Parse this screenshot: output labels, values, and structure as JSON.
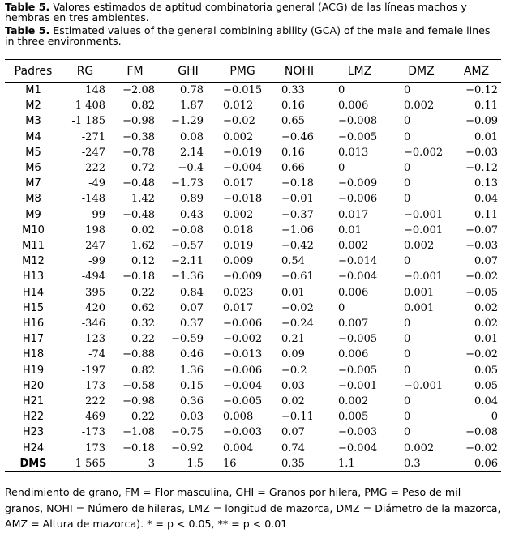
{
  "caption": {
    "es_label": "Table 5.",
    "es_text": "Valores estimados de aptitud combinatoria general (ACG) de las líneas machos y hembras en tres ambientes.",
    "en_label": "Table 5.",
    "en_text": "Estimated values of the general combining ability (GCA) of the male and female lines in three environments."
  },
  "table": {
    "headers": [
      "Padres",
      "RG",
      "FM",
      "GHI",
      "PMG",
      "NOHI",
      "LMZ",
      "DMZ",
      "AMZ"
    ],
    "rows": [
      [
        "M1",
        "148",
        "−2.08",
        "0.78",
        "−0.015",
        "0.33",
        "0",
        "0",
        "−0.12"
      ],
      [
        "M2",
        "1 408",
        "0.82",
        "1.87",
        "0.012",
        "0.16",
        "0.006",
        "0.002",
        "0.11"
      ],
      [
        "M3",
        "-1 185",
        "−0.98",
        "−1.29",
        "−0.02",
        "0.65",
        "−0.008",
        "0",
        "−0.09"
      ],
      [
        "M4",
        "-271",
        "−0.38",
        "0.08",
        "0.002",
        "−0.46",
        "−0.005",
        "0",
        "0.01"
      ],
      [
        "M5",
        "-247",
        "−0.78",
        "2.14",
        "−0.019",
        "0.16",
        "0.013",
        "−0.002",
        "−0.03"
      ],
      [
        "M6",
        "222",
        "0.72",
        "−0.4",
        "−0.004",
        "0.66",
        "0",
        "0",
        "−0.12"
      ],
      [
        "M7",
        "-49",
        "−0.48",
        "−1.73",
        "0.017",
        "−0.18",
        "−0.009",
        "0",
        "0.13"
      ],
      [
        "M8",
        "-148",
        "1.42",
        "0.89",
        "−0.018",
        "−0.01",
        "−0.006",
        "0",
        "0.04"
      ],
      [
        "M9",
        "-99",
        "−0.48",
        "0.43",
        "0.002",
        "−0.37",
        "0.017",
        "−0.001",
        "0.11"
      ],
      [
        "M10",
        "198",
        "0.02",
        "−0.08",
        "0.018",
        "−1.06",
        "0.01",
        "−0.001",
        "−0.07"
      ],
      [
        "M11",
        "247",
        "1.62",
        "−0.57",
        "0.019",
        "−0.42",
        "0.002",
        "0.002",
        "−0.03"
      ],
      [
        "M12",
        "-99",
        "0.12",
        "−2.11",
        "0.009",
        "0.54",
        "−0.014",
        "0",
        "0.07"
      ],
      [
        "H13",
        "-494",
        "−0.18",
        "−1.36",
        "−0.009",
        "−0.61",
        "−0.004",
        "−0.001",
        "−0.02"
      ],
      [
        "H14",
        "395",
        "0.22",
        "0.84",
        "0.023",
        "0.01",
        "0.006",
        "0.001",
        "−0.05"
      ],
      [
        "H15",
        "420",
        "0.62",
        "0.07",
        "0.017",
        "−0.02",
        "0",
        "0.001",
        "0.02"
      ],
      [
        "H16",
        "-346",
        "0.32",
        "0.37",
        "−0.006",
        "−0.24",
        "0.007",
        "0",
        "0.02"
      ],
      [
        "H17",
        "-123",
        "0.22",
        "−0.59",
        "−0.002",
        "0.21",
        "−0.005",
        "0",
        "0.01"
      ],
      [
        "H18",
        "-74",
        "−0.88",
        "0.46",
        "−0.013",
        "0.09",
        "0.006",
        "0",
        "−0.02"
      ],
      [
        "H19",
        "-197",
        "0.82",
        "1.36",
        "−0.006",
        "−0.2",
        "−0.005",
        "0",
        "0.05"
      ],
      [
        "H20",
        "-173",
        "−0.58",
        "0.15",
        "−0.004",
        "0.03",
        "−0.001",
        "−0.001",
        "0.05"
      ],
      [
        "H21",
        "222",
        "−0.98",
        "0.36",
        "−0.005",
        "0.02",
        "0.002",
        "0",
        "0.04"
      ],
      [
        "H22",
        "469",
        "0.22",
        "0.03",
        "0.008",
        "−0.11",
        "0.005",
        "0",
        "0"
      ],
      [
        "H23",
        "-173",
        "−1.08",
        "−0.75",
        "−0.003",
        "0.07",
        "−0.003",
        "0",
        "−0.08"
      ],
      [
        "H24",
        "173",
        "−0.18",
        "−0.92",
        "0.004",
        "0.74",
        "−0.004",
        "0.002",
        "−0.02"
      ],
      [
        "DMS",
        "1 565",
        "3",
        "1.5",
        "16",
        "0.35",
        "1.1",
        "0.3",
        "0.06"
      ]
    ]
  },
  "footnote": "Rendimiento de grano, FM = Flor masculina, GHI = Granos por hilera, PMG = Peso de mil granos, NOHI = Número de hileras, LMZ = longitud de mazorca, DMZ = Diámetro de la mazorca, AMZ = Altura de mazorca). * = p < 0.05, ** = p < 0.01"
}
